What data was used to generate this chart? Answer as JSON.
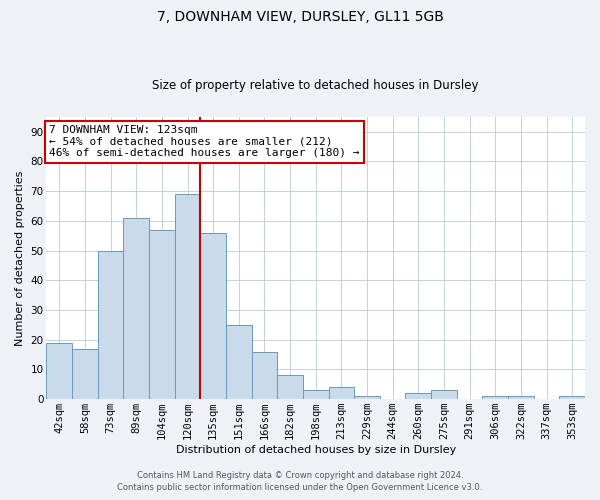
{
  "title": "7, DOWNHAM VIEW, DURSLEY, GL11 5GB",
  "subtitle": "Size of property relative to detached houses in Dursley",
  "xlabel": "Distribution of detached houses by size in Dursley",
  "ylabel": "Number of detached properties",
  "bar_labels": [
    "42sqm",
    "58sqm",
    "73sqm",
    "89sqm",
    "104sqm",
    "120sqm",
    "135sqm",
    "151sqm",
    "166sqm",
    "182sqm",
    "198sqm",
    "213sqm",
    "229sqm",
    "244sqm",
    "260sqm",
    "275sqm",
    "291sqm",
    "306sqm",
    "322sqm",
    "337sqm",
    "353sqm"
  ],
  "bar_values": [
    19,
    17,
    50,
    61,
    57,
    69,
    56,
    25,
    16,
    8,
    3,
    4,
    1,
    0,
    2,
    3,
    0,
    1,
    1,
    0,
    1
  ],
  "bar_color": "#c9daea",
  "bar_edge_color": "#6699bb",
  "vline_x": 6,
  "vline_color": "#cc0000",
  "annotation_text": "7 DOWNHAM VIEW: 123sqm\n← 54% of detached houses are smaller (212)\n46% of semi-detached houses are larger (180) →",
  "annotation_box_color": "white",
  "annotation_box_edge_color": "#cc0000",
  "ylim": [
    0,
    95
  ],
  "yticks": [
    0,
    10,
    20,
    30,
    40,
    50,
    60,
    70,
    80,
    90
  ],
  "footer_line1": "Contains HM Land Registry data © Crown copyright and database right 2024.",
  "footer_line2": "Contains public sector information licensed under the Open Government Licence v3.0.",
  "background_color": "#eef2f7",
  "plot_background_color": "#ffffff",
  "grid_color": "#c5d0dc",
  "title_fontsize": 10,
  "subtitle_fontsize": 8.5,
  "xlabel_fontsize": 8,
  "ylabel_fontsize": 8,
  "tick_fontsize": 7.5,
  "annotation_fontsize": 8
}
